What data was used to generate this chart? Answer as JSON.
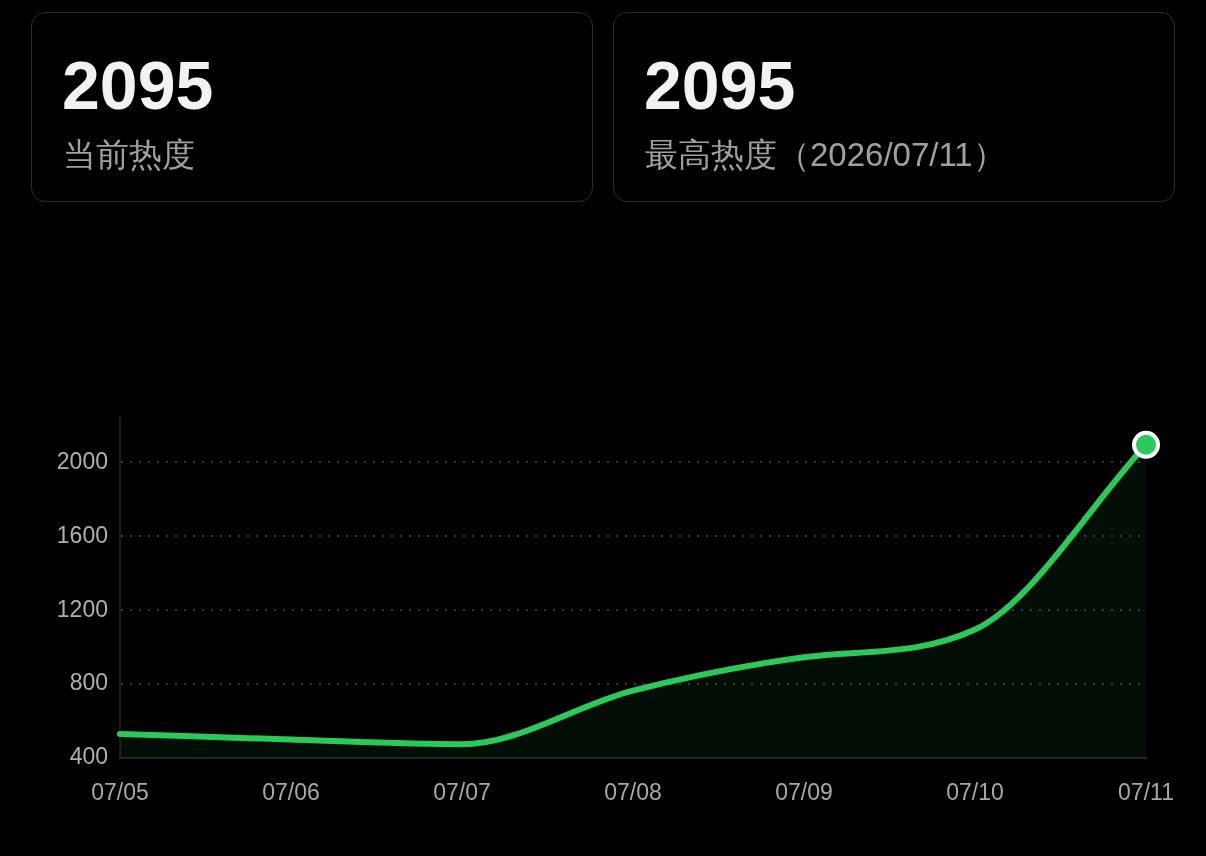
{
  "chart_data": [
    {
      "type": "other",
      "annotations": [
        "2095",
        "当前热度"
      ]
    },
    {
      "type": "other",
      "annotations": [
        "2095",
        "最高热度（2026/07/11）"
      ]
    },
    {
      "type": "area",
      "categories": [
        "07/05",
        "07/06",
        "07/07",
        "07/08",
        "07/09",
        "07/10",
        "07/11"
      ],
      "series": [
        {
          "color": "#2bc95a",
          "values": [
            530,
            500,
            475,
            765,
            945,
            1095,
            2095
          ]
        },
        {
          "type": "scatter",
          "color": "#2bc95a",
          "x": [
            "07/11"
          ],
          "values": [
            2095
          ],
          "marker": "circle"
        }
      ],
      "ylim": [
        400,
        2240
      ],
      "yticks": [
        400,
        800,
        1200,
        1600,
        2000
      ],
      "grid": "y",
      "marker": "none"
    }
  ]
}
